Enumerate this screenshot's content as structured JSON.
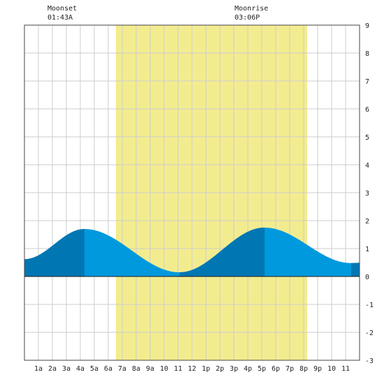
{
  "moon": {
    "moonset_label": "Moonset",
    "moonset_time": "01:43A",
    "moonrise_label": "Moonrise",
    "moonrise_time": "03:06P"
  },
  "colors": {
    "daylight": "#f3ec8f",
    "tide_fill": "#0099dd",
    "tide_dark": "#0077b3",
    "grid": "#cccccc",
    "background": "#ffffff"
  },
  "chart_data": {
    "type": "area",
    "title": "",
    "xlabel": "",
    "ylabel": "",
    "xlim": [
      0,
      24
    ],
    "ylim": [
      -3,
      9
    ],
    "grid": true,
    "x_tick_labels": [
      "1a",
      "2a",
      "3a",
      "4a",
      "5a",
      "6a",
      "7a",
      "8a",
      "9a",
      "10",
      "11",
      "12",
      "1p",
      "2p",
      "3p",
      "4p",
      "5p",
      "6p",
      "7p",
      "8p",
      "9p",
      "10",
      "11"
    ],
    "y_tick_labels": [
      "9",
      "8",
      "7",
      "6",
      "5",
      "4",
      "3",
      "2",
      "1",
      "0",
      "-1",
      "-2",
      "-3"
    ],
    "daylight_hours": [
      6.55,
      20.25
    ],
    "moonset_hour": 1.72,
    "moonrise_hour": 15.1,
    "extrema": [
      {
        "hour": 0.0,
        "height": 0.62
      },
      {
        "hour": 4.3,
        "height": 1.7
      },
      {
        "hour": 11.1,
        "height": 0.15
      },
      {
        "hour": 17.2,
        "height": 1.75
      },
      {
        "hour": 23.4,
        "height": 0.48
      },
      {
        "hour": 24.0,
        "height": 0.49
      }
    ],
    "dark_bands": [
      [
        0,
        4.3
      ],
      [
        11.1,
        17.2
      ],
      [
        23.4,
        24.0
      ]
    ]
  }
}
